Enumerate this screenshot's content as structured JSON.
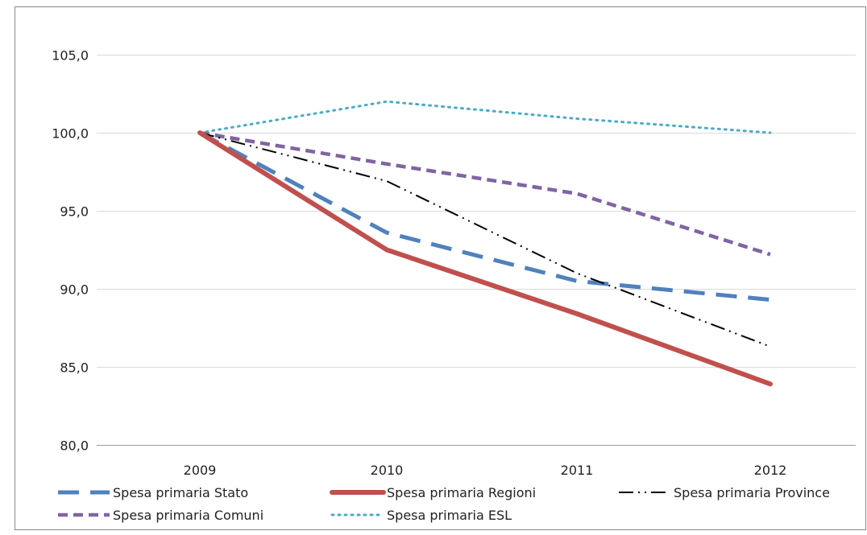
{
  "chart_data": {
    "type": "line",
    "title": "",
    "xlabel": "",
    "ylabel": "",
    "categories": [
      "2009",
      "2010",
      "2011",
      "2012"
    ],
    "ylim": [
      80,
      105
    ],
    "yticks": [
      80,
      85,
      90,
      95,
      100,
      105
    ],
    "ytick_labels": [
      "80,0",
      "85,0",
      "90,0",
      "95,0",
      "100,0",
      "105,0"
    ],
    "grid": "horizontal",
    "legend_position": "bottom",
    "series": [
      {
        "name": "Spesa primaria Stato",
        "values": [
          100.0,
          93.6,
          90.5,
          89.3
        ],
        "color": "#4f81bd",
        "style": "long-dash"
      },
      {
        "name": "Spesa primaria Regioni",
        "values": [
          100.0,
          92.5,
          88.4,
          83.9
        ],
        "color": "#c0504d",
        "style": "solid-thick"
      },
      {
        "name": "Spesa primaria Province",
        "values": [
          100.0,
          96.9,
          91.0,
          86.3
        ],
        "color": "#000000",
        "style": "dash-dot-dot"
      },
      {
        "name": "Spesa primaria Comuni",
        "values": [
          100.0,
          98.0,
          96.1,
          92.2
        ],
        "color": "#8064a2",
        "style": "dash"
      },
      {
        "name": "Spesa primaria ESL",
        "values": [
          100.0,
          102.0,
          100.9,
          100.0
        ],
        "color": "#4bacc6",
        "style": "dotted"
      }
    ]
  }
}
